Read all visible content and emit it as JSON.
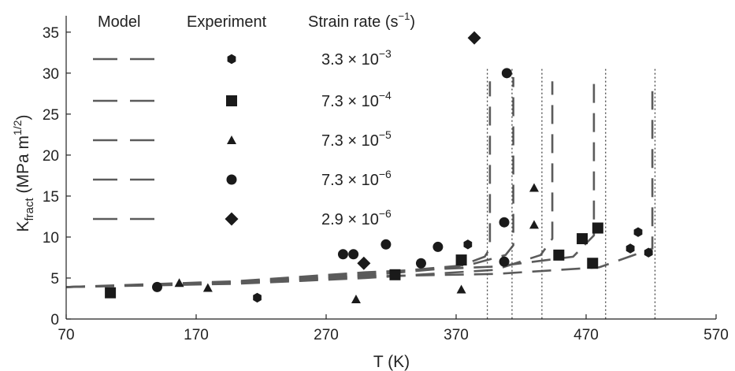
{
  "chart_data": {
    "type": "scatter",
    "xlabel": "T (K)",
    "ylabel": {
      "base": "K",
      "sub": "fract",
      "rest": " (MPa m",
      "sup": "1/2",
      "close": ")"
    },
    "xlim": [
      70,
      570
    ],
    "ylim": [
      0,
      37
    ],
    "xticks": [
      70,
      170,
      270,
      370,
      470,
      570
    ],
    "yticks": [
      0,
      5,
      10,
      15,
      20,
      25,
      30,
      35
    ],
    "legend": {
      "model_header": "Model",
      "experiment_header": "Experiment",
      "rate_header": "Strain rate (s",
      "rate_header_sup": "−1",
      "rate_header_close": ")",
      "entries": [
        {
          "rate_mantissa": "3.3 × 10",
          "rate_exp": "−3",
          "marker": "hexagon"
        },
        {
          "rate_mantissa": "7.3 × 10",
          "rate_exp": "−4",
          "marker": "square"
        },
        {
          "rate_mantissa": "7.3 × 10",
          "rate_exp": "−5",
          "marker": "triangle"
        },
        {
          "rate_mantissa": "7.3 × 10",
          "rate_exp": "−6",
          "marker": "circle"
        },
        {
          "rate_mantissa": "2.9 × 10",
          "rate_exp": "−6",
          "marker": "diamond"
        }
      ]
    },
    "experiment": [
      {
        "marker": "hexagon",
        "points": [
          [
            217,
            2.6
          ],
          [
            379,
            9.1
          ],
          [
            510,
            10.6
          ],
          [
            518,
            8.1
          ],
          [
            504,
            8.6
          ]
        ]
      },
      {
        "marker": "square",
        "points": [
          [
            104,
            3.2
          ],
          [
            323,
            5.4
          ],
          [
            374,
            7.2
          ],
          [
            449,
            7.8
          ],
          [
            467,
            9.8
          ],
          [
            479,
            11.1
          ],
          [
            475,
            6.8
          ]
        ]
      },
      {
        "marker": "triangle",
        "points": [
          [
            157,
            4.4
          ],
          [
            179,
            3.8
          ],
          [
            293,
            2.4
          ],
          [
            374,
            3.6
          ],
          [
            430,
            11.5
          ],
          [
            430,
            16.0
          ]
        ]
      },
      {
        "marker": "circle",
        "points": [
          [
            140,
            3.9
          ],
          [
            283,
            7.9
          ],
          [
            291,
            7.9
          ],
          [
            316,
            9.1
          ],
          [
            343,
            6.8
          ],
          [
            356,
            8.8
          ],
          [
            407,
            11.8
          ],
          [
            407,
            7.0
          ],
          [
            409,
            30.0
          ]
        ]
      },
      {
        "marker": "diamond",
        "points": [
          [
            299,
            6.8
          ],
          [
            384,
            34.3
          ]
        ]
      }
    ],
    "model_curves": [
      [
        [
          70,
          3.9
        ],
        [
          200,
          4.4
        ],
        [
          300,
          5.3
        ],
        [
          370,
          6.3
        ],
        [
          392,
          7.6
        ],
        [
          396,
          8.6
        ],
        [
          396,
          29.0
        ]
      ],
      [
        [
          70,
          3.9
        ],
        [
          200,
          4.5
        ],
        [
          300,
          5.5
        ],
        [
          380,
          6.6
        ],
        [
          408,
          7.8
        ],
        [
          414,
          9.0
        ],
        [
          414,
          29.5
        ]
      ],
      [
        [
          70,
          3.9
        ],
        [
          200,
          4.3
        ],
        [
          300,
          5.0
        ],
        [
          400,
          6.0
        ],
        [
          435,
          7.8
        ],
        [
          444,
          9.8
        ],
        [
          444,
          29.0
        ]
      ],
      [
        [
          70,
          3.9
        ],
        [
          200,
          4.6
        ],
        [
          300,
          5.7
        ],
        [
          400,
          6.4
        ],
        [
          460,
          7.6
        ],
        [
          476,
          10.2
        ],
        [
          476,
          29.5
        ]
      ],
      [
        [
          70,
          3.9
        ],
        [
          200,
          4.4
        ],
        [
          300,
          5.2
        ],
        [
          400,
          5.5
        ],
        [
          480,
          6.3
        ],
        [
          521,
          8.6
        ],
        [
          521,
          27.8
        ]
      ]
    ],
    "vlines": [
      394,
      413,
      436,
      485,
      523
    ]
  }
}
